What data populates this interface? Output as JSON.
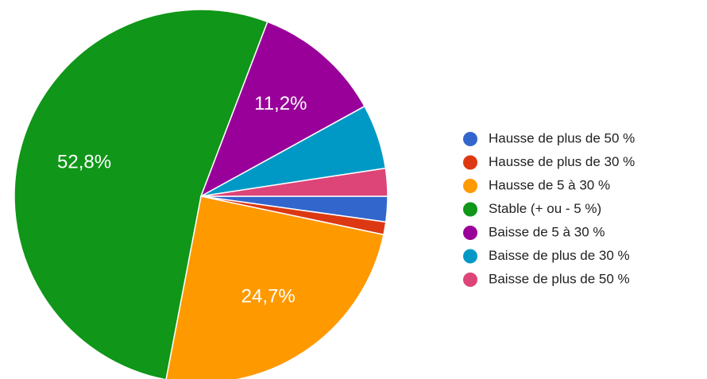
{
  "chart_data": {
    "type": "pie",
    "categories": [
      "Hausse de plus de 50 %",
      "Hausse de plus de 30 %",
      "Hausse de 5 à 30 %",
      "Stable (+ ou - 5 %)",
      "Baisse de 5 à 30 %",
      "Baisse de plus de 30 %",
      "Baisse de plus de 50 %"
    ],
    "values": [
      2.2,
      1.1,
      24.7,
      52.8,
      11.2,
      5.6,
      2.4
    ],
    "value_labels": [
      null,
      null,
      "24,7%",
      "52,8%",
      "11,2%",
      null,
      null
    ],
    "colors": [
      "#3366cc",
      "#dc3912",
      "#ff9900",
      "#109618",
      "#990099",
      "#0099c6",
      "#dd4477"
    ],
    "legend": "right"
  }
}
